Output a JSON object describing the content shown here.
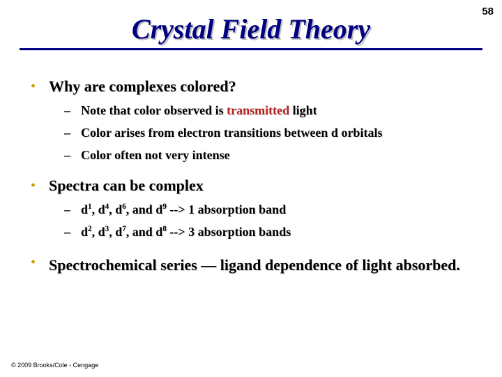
{
  "page_number": "58",
  "title": "Crystal Field Theory",
  "colors": {
    "title_color": "#000080",
    "rule_color": "#000080",
    "bullet_dot_color": "#cc9900",
    "highlight_color": "#b22222",
    "text_color": "#000000",
    "shadow_color": "#d9d9d9",
    "background": "#ffffff"
  },
  "typography": {
    "title_font": "Comic Sans MS",
    "body_font": "Times New Roman",
    "title_fontsize": 40,
    "level1_fontsize": 22,
    "level2_fontsize": 18
  },
  "sections": [
    {
      "heading": "Why are complexes colored?",
      "items": [
        {
          "pre": "Note that color observed is ",
          "hl": "transmitted",
          "post": " light"
        },
        {
          "pre": "Color arises from electron transitions between d orbitals",
          "hl": "",
          "post": ""
        },
        {
          "pre": "Color often not very intense",
          "hl": "",
          "post": ""
        }
      ]
    },
    {
      "heading": "Spectra can be complex",
      "items": [
        {
          "html": "d<sup>1</sup>, d<sup>4</sup>, d<sup>6</sup>, and d<sup>9</sup>  --&gt; 1 absorption band"
        },
        {
          "html": "d<sup>2</sup>, d<sup>3</sup>, d<sup>7</sup>, and d<sup>8</sup>  --&gt; 3 absorption bands"
        }
      ]
    },
    {
      "heading": "Spectrochemical series — ligand dependence of light absorbed.",
      "items": []
    }
  ],
  "copyright": "© 2009 Brooks/Cole - Cengage"
}
